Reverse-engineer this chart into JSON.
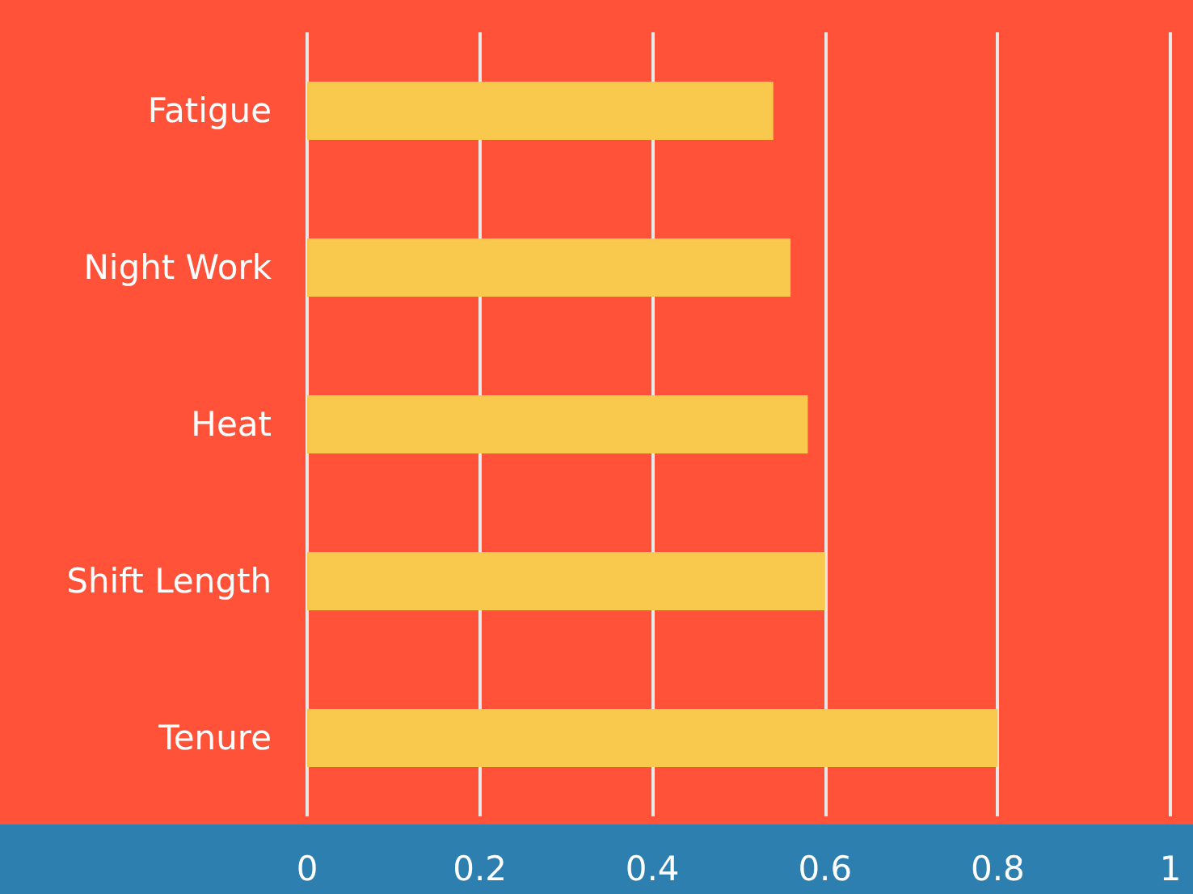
{
  "chart_data": {
    "type": "bar",
    "orientation": "horizontal",
    "categories": [
      "Fatigue",
      "Night Work",
      "Heat",
      "Shift Length",
      "Tenure"
    ],
    "values": [
      0.54,
      0.56,
      0.58,
      0.6,
      0.8
    ],
    "color": "#f9c94e",
    "xlim": [
      0,
      1
    ],
    "xticks": [
      0,
      0.2,
      0.4,
      0.6,
      0.8,
      1
    ],
    "grid": "x"
  }
}
